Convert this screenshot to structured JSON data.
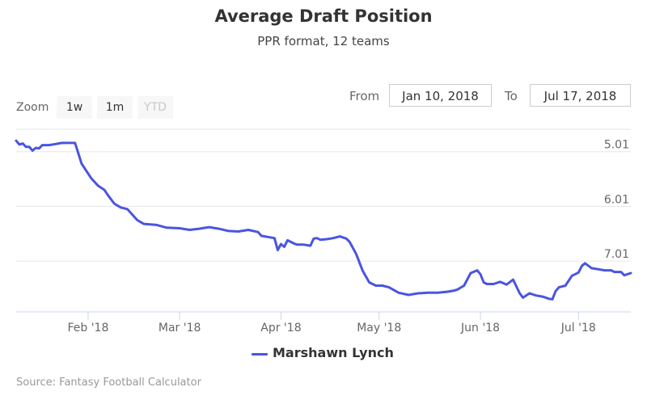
{
  "title": "Average Draft Position",
  "subtitle": "PPR format, 12 teams",
  "zoom": {
    "label": "Zoom",
    "buttons": [
      {
        "label": "1w",
        "enabled": true
      },
      {
        "label": "1m",
        "enabled": true
      },
      {
        "label": "YTD",
        "enabled": false
      }
    ]
  },
  "range": {
    "from_label": "From",
    "from_value": "Jan 10, 2018",
    "to_label": "To",
    "to_value": "Jul 17, 2018"
  },
  "credits": "Source: Fantasy Football Calculator",
  "colors": {
    "series": "#4a55e0",
    "grid": "#e6e6e6",
    "axis_text": "#666666"
  },
  "chart_data": {
    "type": "line",
    "title": "Average Draft Position",
    "subtitle": "PPR format, 12 teams",
    "xlabel": "",
    "ylabel": "",
    "x_range": [
      "2018-01-10",
      "2018-07-17"
    ],
    "y_reversed": true,
    "ylim": [
      4.6,
      7.94
    ],
    "y_ticks": [
      5.01,
      6.01,
      7.01
    ],
    "y_tick_labels": [
      "5.01",
      "6.01",
      "7.01"
    ],
    "x_ticks": [
      "2018-02-01",
      "2018-03-01",
      "2018-04-01",
      "2018-05-01",
      "2018-06-01",
      "2018-07-01"
    ],
    "x_tick_labels": [
      "Feb '18",
      "Mar '18",
      "Apr '18",
      "May '18",
      "Jun '18",
      "Jul '18"
    ],
    "grid": true,
    "legend": "bottom-center",
    "series": [
      {
        "name": "Marshawn Lynch",
        "x": [
          "2018-01-10",
          "2018-01-11",
          "2018-01-12",
          "2018-01-13",
          "2018-01-14",
          "2018-01-15",
          "2018-01-16",
          "2018-01-17",
          "2018-01-18",
          "2018-01-20",
          "2018-01-22",
          "2018-01-24",
          "2018-01-26",
          "2018-01-28",
          "2018-01-30",
          "2018-01-31",
          "2018-02-02",
          "2018-02-04",
          "2018-02-06",
          "2018-02-07",
          "2018-02-09",
          "2018-02-11",
          "2018-02-13",
          "2018-02-16",
          "2018-02-18",
          "2018-02-22",
          "2018-02-25",
          "2018-03-01",
          "2018-03-04",
          "2018-03-07",
          "2018-03-10",
          "2018-03-13",
          "2018-03-16",
          "2018-03-19",
          "2018-03-22",
          "2018-03-25",
          "2018-03-26",
          "2018-03-28",
          "2018-03-30",
          "2018-03-31",
          "2018-04-01",
          "2018-04-02",
          "2018-04-03",
          "2018-04-05",
          "2018-04-06",
          "2018-04-08",
          "2018-04-10",
          "2018-04-11",
          "2018-04-12",
          "2018-04-13",
          "2018-04-15",
          "2018-04-17",
          "2018-04-19",
          "2018-04-21",
          "2018-04-22",
          "2018-04-24",
          "2018-04-26",
          "2018-04-28",
          "2018-04-30",
          "2018-05-02",
          "2018-05-04",
          "2018-05-07",
          "2018-05-10",
          "2018-05-13",
          "2018-05-16",
          "2018-05-19",
          "2018-05-22",
          "2018-05-24",
          "2018-05-25",
          "2018-05-27",
          "2018-05-29",
          "2018-05-31",
          "2018-06-01",
          "2018-06-02",
          "2018-06-03",
          "2018-06-05",
          "2018-06-07",
          "2018-06-09",
          "2018-06-11",
          "2018-06-13",
          "2018-06-14",
          "2018-06-16",
          "2018-06-18",
          "2018-06-20",
          "2018-06-22",
          "2018-06-23",
          "2018-06-24",
          "2018-06-25",
          "2018-06-27",
          "2018-06-29",
          "2018-07-01",
          "2018-07-02",
          "2018-07-03",
          "2018-07-05",
          "2018-07-07",
          "2018-07-09",
          "2018-07-11",
          "2018-07-12",
          "2018-07-14",
          "2018-07-15",
          "2018-07-17"
        ],
        "values": [
          4.81,
          4.88,
          4.86,
          4.92,
          4.92,
          4.99,
          4.94,
          4.95,
          4.89,
          4.89,
          4.87,
          4.85,
          4.85,
          4.85,
          5.23,
          5.32,
          5.5,
          5.63,
          5.71,
          5.8,
          5.96,
          6.03,
          6.06,
          6.26,
          6.33,
          6.35,
          6.4,
          6.41,
          6.44,
          6.42,
          6.39,
          6.42,
          6.46,
          6.47,
          6.44,
          6.48,
          6.55,
          6.57,
          6.59,
          6.81,
          6.7,
          6.75,
          6.63,
          6.69,
          6.71,
          6.71,
          6.73,
          6.6,
          6.59,
          6.62,
          6.61,
          6.59,
          6.56,
          6.6,
          6.66,
          6.88,
          7.19,
          7.4,
          7.46,
          7.46,
          7.49,
          7.59,
          7.63,
          7.6,
          7.59,
          7.59,
          7.57,
          7.55,
          7.53,
          7.46,
          7.23,
          7.18,
          7.25,
          7.4,
          7.43,
          7.43,
          7.39,
          7.44,
          7.35,
          7.6,
          7.68,
          7.6,
          7.64,
          7.66,
          7.7,
          7.71,
          7.56,
          7.49,
          7.46,
          7.28,
          7.22,
          7.1,
          7.05,
          7.14,
          7.16,
          7.18,
          7.18,
          7.21,
          7.21,
          7.27,
          7.23
        ]
      }
    ]
  }
}
